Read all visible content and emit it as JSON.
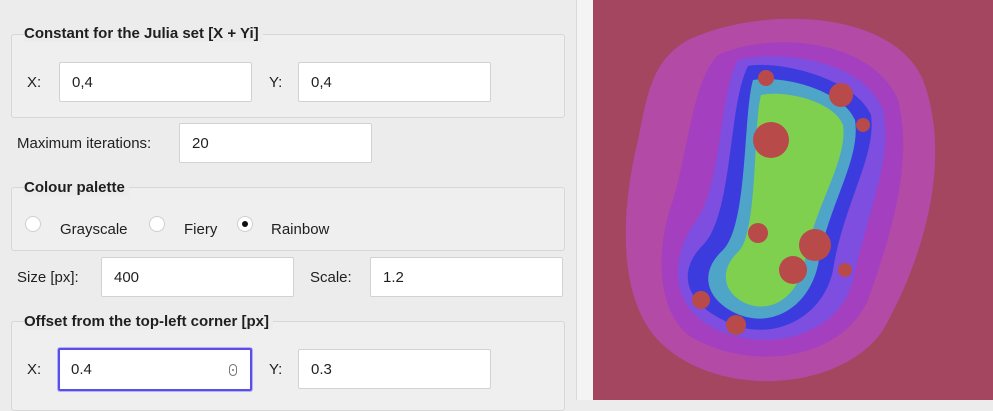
{
  "julia": {
    "legend": "Constant for the Julia set [X + Yi]",
    "x_label": "X:",
    "x_value": "0,4",
    "y_label": "Y:",
    "y_value": "0,4"
  },
  "iterations": {
    "label": "Maximum iterations:",
    "value": "20"
  },
  "palette": {
    "legend": "Colour palette",
    "options": [
      {
        "label": "Grayscale",
        "selected": false
      },
      {
        "label": "Fiery",
        "selected": false
      },
      {
        "label": "Rainbow",
        "selected": true
      }
    ]
  },
  "size": {
    "label": "Size [px]:",
    "value": "400"
  },
  "scale": {
    "label": "Scale:",
    "value": "1.2"
  },
  "offset": {
    "legend": "Offset from the top-left corner [px]",
    "x_label": "X:",
    "x_value": "0.4",
    "y_label": "Y:",
    "y_value": "0.3"
  },
  "render": {
    "background": "#a54660",
    "outer_glow": "#b24aa6",
    "inner_glow": "#a43fc0",
    "band": "#7d4ee0",
    "edge": "#3c3cde",
    "teal": "#4fa5c8",
    "green": "#7fd04e",
    "red": "#b94a4a",
    "accent": "#5b4ee6"
  }
}
